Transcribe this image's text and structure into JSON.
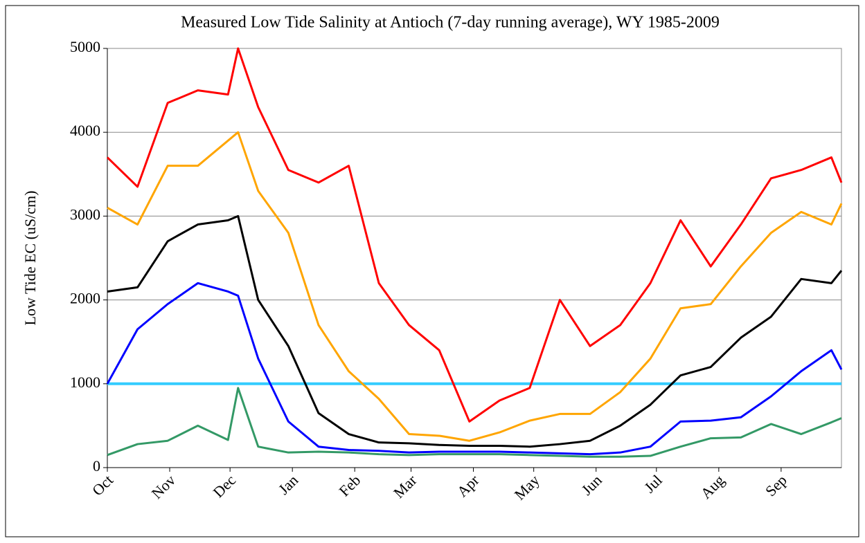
{
  "chart_data": {
    "type": "line",
    "title": "Measured Low Tide Salinity at Antioch (7-day running average), WY 1985-2009",
    "y_label": "Low Tide EC (uS/cm)",
    "x": [
      0,
      15,
      30,
      45,
      60,
      65,
      75,
      90,
      105,
      120,
      135,
      150,
      165,
      180,
      195,
      210,
      225,
      240,
      255,
      270,
      285,
      300,
      315,
      330,
      345,
      360,
      365
    ],
    "xlim": [
      0,
      365
    ],
    "xticks": [
      {
        "value": 0,
        "label": "Oct"
      },
      {
        "value": 31,
        "label": "Nov"
      },
      {
        "value": 61,
        "label": "Dec"
      },
      {
        "value": 92,
        "label": "Jan"
      },
      {
        "value": 123,
        "label": "Feb"
      },
      {
        "value": 151,
        "label": "Mar"
      },
      {
        "value": 182,
        "label": "Apr"
      },
      {
        "value": 212,
        "label": "May"
      },
      {
        "value": 243,
        "label": "Jun"
      },
      {
        "value": 273,
        "label": "Jul"
      },
      {
        "value": 304,
        "label": "Aug"
      },
      {
        "value": 335,
        "label": "Sep"
      }
    ],
    "ylim": [
      0,
      5000
    ],
    "yticks": [
      0,
      1000,
      2000,
      3000,
      4000,
      5000
    ],
    "grid": true,
    "series": [
      {
        "color": "#ff0000",
        "values": [
          3700,
          3350,
          4350,
          4500,
          4450,
          5000,
          4300,
          3550,
          3400,
          3600,
          2200,
          1700,
          1400,
          550,
          800,
          950,
          2000,
          1450,
          1700,
          2200,
          2950,
          2400,
          2900,
          3450,
          3550,
          3700,
          3400
        ]
      },
      {
        "color": "#ffa500",
        "values": [
          3100,
          2900,
          3600,
          3600,
          3900,
          4000,
          3300,
          2800,
          1700,
          1150,
          820,
          400,
          380,
          320,
          420,
          560,
          640,
          640,
          900,
          1300,
          1900,
          1950,
          2400,
          2800,
          3050,
          2900,
          3150
        ]
      },
      {
        "color": "#000000",
        "values": [
          2100,
          2150,
          2700,
          2900,
          2950,
          3000,
          2000,
          1450,
          650,
          400,
          300,
          290,
          270,
          260,
          260,
          250,
          280,
          320,
          500,
          750,
          1100,
          1200,
          1550,
          1800,
          2250,
          2200,
          2350
        ]
      },
      {
        "color": "#0000ff",
        "values": [
          1000,
          1650,
          1950,
          2200,
          2100,
          2050,
          1300,
          550,
          250,
          210,
          200,
          180,
          190,
          190,
          190,
          180,
          170,
          160,
          180,
          250,
          550,
          560,
          600,
          850,
          1150,
          1400,
          1170
        ]
      },
      {
        "color": "#339966",
        "values": [
          150,
          280,
          320,
          500,
          330,
          950,
          250,
          180,
          190,
          180,
          160,
          150,
          160,
          160,
          160,
          150,
          140,
          130,
          130,
          140,
          250,
          350,
          360,
          520,
          400,
          540,
          590
        ]
      }
    ],
    "reference_line": {
      "value": 1000,
      "color": "#33ccff"
    }
  }
}
